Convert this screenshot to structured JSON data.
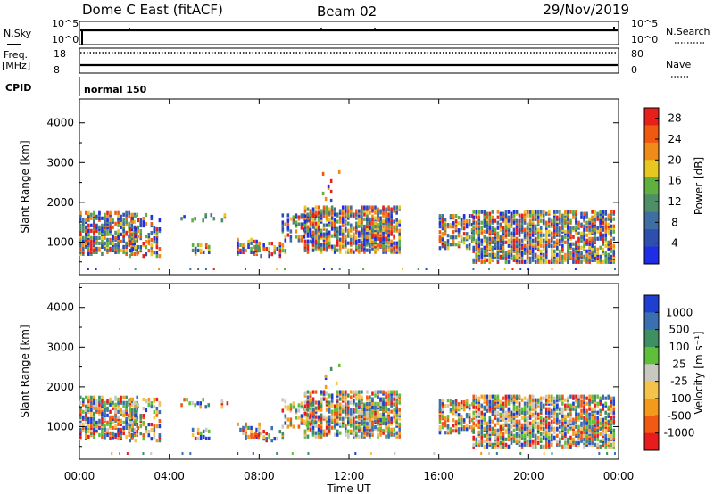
{
  "header": {
    "radar": "Dome C East (fitACF)",
    "beam": "Beam 02",
    "date": "29/Nov/2019"
  },
  "panels": {
    "nsky": {
      "label": "N.Sky",
      "top_tick": "10^5",
      "bottom_tick": "10^0"
    },
    "nsearch": {
      "label": "N.Search",
      "top_tick": "10^5",
      "bottom_tick": "10^0"
    },
    "freq": {
      "label_line1": "Freq.",
      "label_line2": "[MHz]",
      "top_tick": "18",
      "bottom_tick": "8"
    },
    "nave": {
      "label": "Nave",
      "top_tick": "80",
      "bottom_tick": "0"
    },
    "cpid": {
      "label": "CPID",
      "value": "normal 150"
    }
  },
  "colors": {
    "power_scale": [
      "#1f2ee6",
      "#2f4fb0",
      "#3e6fa0",
      "#4f8f68",
      "#60b040",
      "#e6c820",
      "#f08a18",
      "#f05a10",
      "#e8201a"
    ],
    "velocity_scale": [
      "#e81c1c",
      "#f25a14",
      "#f39a1a",
      "#f5c24a",
      "#c8c8c0",
      "#5fbf3a",
      "#3e8f62",
      "#3a6fb0",
      "#1e3fd0"
    ]
  },
  "chart_data": [
    {
      "type": "heatmap",
      "title": "Power",
      "xlabel": "Time UT",
      "ylabel": "Slant Range [km]",
      "x_ticks": [
        "00:00",
        "04:00",
        "08:00",
        "12:00",
        "16:00",
        "20:00",
        "00:00"
      ],
      "y_ticks": [
        "1000",
        "2000",
        "3000",
        "4000"
      ],
      "ylim": [
        180,
        4600
      ],
      "colorbar": {
        "label": "Power [dB]",
        "ticks": [
          "4",
          "8",
          "12",
          "16",
          "20",
          "24",
          "28"
        ],
        "range": [
          0,
          30
        ]
      }
    },
    {
      "type": "heatmap",
      "title": "Velocity",
      "xlabel": "Time UT",
      "ylabel": "Slant Range [km]",
      "x_ticks": [
        "00:00",
        "04:00",
        "08:00",
        "12:00",
        "16:00",
        "20:00",
        "00:00"
      ],
      "y_ticks": [
        "1000",
        "2000",
        "3000",
        "4000"
      ],
      "ylim": [
        180,
        4600
      ],
      "colorbar": {
        "label": "Velocity [m s⁻¹]",
        "ticks": [
          "-1000",
          "-500",
          "-100",
          "-25",
          "25",
          "100",
          "500",
          "1000"
        ]
      }
    }
  ]
}
